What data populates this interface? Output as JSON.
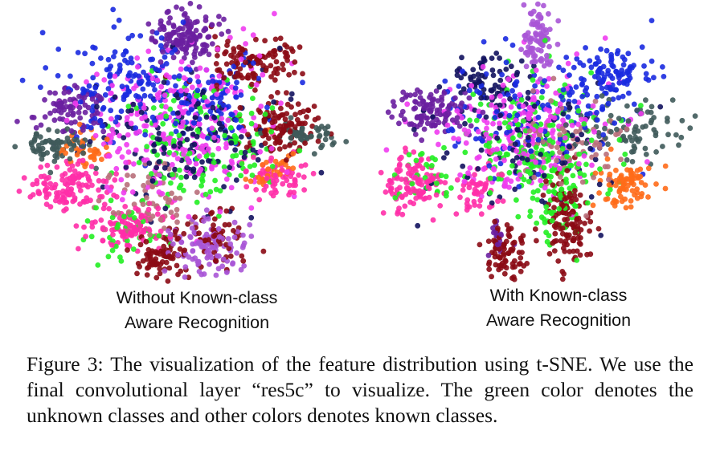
{
  "figure": {
    "panels": [
      {
        "label_line1": "Without Known-class",
        "label_line2": "Aware Recognition"
      },
      {
        "label_line1": "With Known-class",
        "label_line2": "Aware Recognition"
      }
    ],
    "caption": "Figure 3: The visualization of the feature distribution using t-SNE. We use the final convolutional layer “res5c” to visualize. The green color denotes the unknown classes and other colors denotes known classes.",
    "class_colors": {
      "unknown": "#22ee22",
      "known": [
        "#6a1fa0",
        "#a855d6",
        "#8b0a14",
        "#ff2fa8",
        "#f03cf0",
        "#1a2ae0",
        "#12125e",
        "#3f5a5a",
        "#ff6b1a",
        "#b86f7a"
      ]
    }
  }
}
